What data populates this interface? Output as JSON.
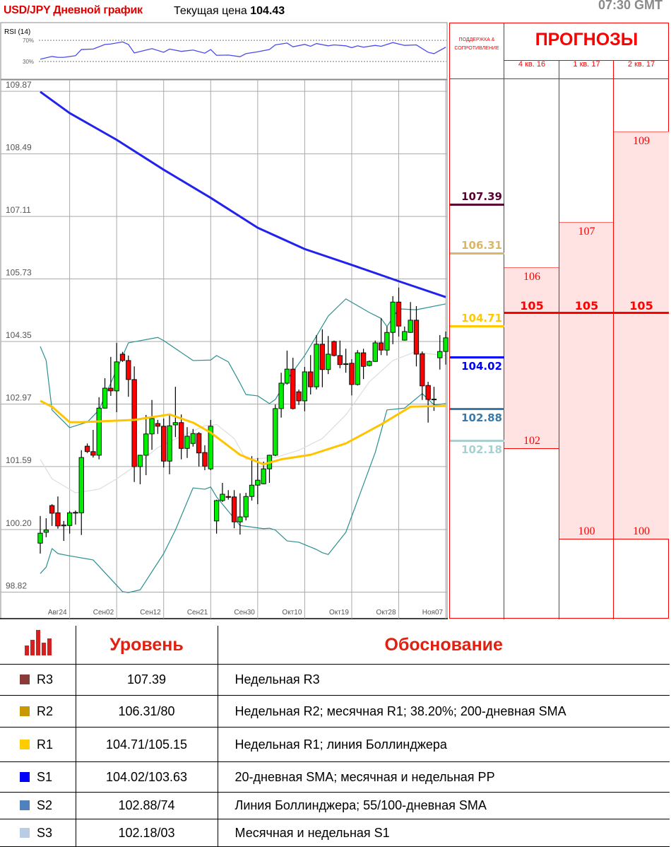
{
  "header": {
    "title": "USD/JPY Дневной график",
    "price_label": "Текущая цена",
    "price_value": "104.43",
    "time": "07:30 GMT"
  },
  "colors": {
    "up": "#00ee00",
    "down": "#ff0000",
    "sma200": "#2222ee",
    "sma55": "#ffc400",
    "bollinger": "#2a9090",
    "bollinger_mid": "#dddddd",
    "rsi": "#4a4af0",
    "accent": "#ff0000"
  },
  "chart_data": {
    "type": "candlestick",
    "ylim": [
      98.82,
      109.87
    ],
    "yticks": [
      "109.87",
      "108.49",
      "107.11",
      "105.73",
      "104.35",
      "102.97",
      "101.59",
      "100.20",
      "98.82"
    ],
    "xticks": [
      [
        "2016-08-24",
        "Авг24"
      ],
      [
        "2016-09-02",
        "Сен02"
      ],
      [
        "2016-09-12",
        "Сен12"
      ],
      [
        "2016-09-21",
        "Сен21"
      ],
      [
        "2016-09-30",
        "Сен30"
      ],
      [
        "2016-10-10",
        "Окт10"
      ],
      [
        "2016-10-19",
        "Окт19"
      ],
      [
        "2016-10-28",
        "Окт28"
      ],
      [
        "2016-11-07",
        "Ноя07"
      ]
    ],
    "grid": true,
    "candles_fields": [
      "date",
      "open",
      "high",
      "low",
      "close"
    ],
    "candles": [
      [
        "2016-08-18",
        99.9,
        100.5,
        99.67,
        100.12
      ],
      [
        "2016-08-19",
        100.14,
        100.45,
        100.03,
        100.19
      ],
      [
        "2016-08-21",
        100.73,
        100.76,
        100.28,
        100.56
      ],
      [
        "2016-08-22",
        100.57,
        100.93,
        100.22,
        100.28
      ],
      [
        "2016-08-23",
        100.29,
        100.39,
        99.95,
        100.3
      ],
      [
        "2016-08-24",
        100.29,
        100.61,
        100.11,
        100.57
      ],
      [
        "2016-08-25",
        100.57,
        100.62,
        100.31,
        100.58
      ],
      [
        "2016-08-26",
        100.57,
        101.95,
        100.08,
        101.79
      ],
      [
        "2016-08-28",
        102.04,
        102.1,
        101.89,
        101.92
      ],
      [
        "2016-08-29",
        101.92,
        102.4,
        101.79,
        101.84
      ],
      [
        "2016-08-30",
        101.84,
        103.12,
        101.75,
        102.88
      ],
      [
        "2016-08-31",
        102.88,
        103.54,
        102.87,
        103.32
      ],
      [
        "2016-09-01",
        103.32,
        104.01,
        103.15,
        103.26
      ],
      [
        "2016-09-02",
        103.26,
        104.32,
        102.79,
        103.9
      ],
      [
        "2016-09-04",
        104.07,
        104.12,
        103.9,
        103.93
      ],
      [
        "2016-09-05",
        103.93,
        104.04,
        103.13,
        103.51
      ],
      [
        "2016-09-06",
        103.51,
        103.8,
        101.25,
        101.59
      ],
      [
        "2016-09-07",
        101.59,
        101.85,
        101.2,
        101.84
      ],
      [
        "2016-09-08",
        101.84,
        102.73,
        101.4,
        102.31
      ],
      [
        "2016-09-09",
        102.31,
        103.06,
        101.96,
        102.65
      ],
      [
        "2016-09-11",
        102.54,
        102.62,
        102.31,
        102.48
      ],
      [
        "2016-09-12",
        102.48,
        102.65,
        101.57,
        101.71
      ],
      [
        "2016-09-13",
        101.71,
        102.73,
        101.42,
        102.49
      ],
      [
        "2016-09-14",
        102.51,
        103.35,
        102.24,
        102.56
      ],
      [
        "2016-09-15",
        102.56,
        102.74,
        101.75,
        101.99
      ],
      [
        "2016-09-16",
        101.99,
        102.46,
        101.78,
        102.26
      ],
      [
        "2016-09-18",
        102.1,
        102.42,
        102.03,
        102.32
      ],
      [
        "2016-09-19",
        102.32,
        102.35,
        101.59,
        101.89
      ],
      [
        "2016-09-20",
        101.9,
        102.06,
        101.51,
        101.6
      ],
      [
        "2016-09-21",
        101.54,
        102.62,
        101.51,
        102.48
      ],
      [
        "2016-09-22",
        100.39,
        100.86,
        100.11,
        100.84
      ],
      [
        "2016-09-23",
        100.84,
        101.23,
        100.81,
        100.98
      ],
      [
        "2016-09-25",
        100.93,
        101.07,
        100.86,
        100.92
      ],
      [
        "2016-09-26",
        100.92,
        101.07,
        100.23,
        100.37
      ],
      [
        "2016-09-27",
        100.37,
        101.0,
        100.09,
        100.48
      ],
      [
        "2016-09-28",
        100.48,
        101.01,
        100.4,
        100.93
      ],
      [
        "2016-09-29",
        100.93,
        101.82,
        100.84,
        101.18
      ],
      [
        "2016-09-30",
        101.18,
        101.78,
        100.76,
        101.29
      ],
      [
        "2016-10-02",
        101.21,
        101.7,
        101.2,
        101.54
      ],
      [
        "2016-10-03",
        101.54,
        101.85,
        101.23,
        101.84
      ],
      [
        "2016-10-04",
        101.84,
        102.96,
        101.82,
        102.87
      ],
      [
        "2016-10-05",
        102.87,
        103.66,
        102.67,
        103.43
      ],
      [
        "2016-10-06",
        103.43,
        104.15,
        103.4,
        103.74
      ],
      [
        "2016-10-07",
        103.74,
        103.99,
        102.85,
        102.87
      ],
      [
        "2016-10-09",
        103.24,
        103.29,
        102.95,
        103.04
      ],
      [
        "2016-10-10",
        103.04,
        103.79,
        102.81,
        103.68
      ],
      [
        "2016-10-11",
        103.68,
        104.05,
        103.18,
        103.35
      ],
      [
        "2016-10-12",
        103.35,
        104.49,
        103.29,
        104.29
      ],
      [
        "2016-10-13",
        104.29,
        104.62,
        103.34,
        103.73
      ],
      [
        "2016-10-14",
        103.73,
        104.47,
        103.63,
        104.07
      ],
      [
        "2016-10-16",
        104.35,
        104.37,
        104.02,
        104.04
      ],
      [
        "2016-10-17",
        104.04,
        104.37,
        103.76,
        103.84
      ],
      [
        "2016-10-18",
        103.85,
        104.19,
        103.66,
        103.86
      ],
      [
        "2016-10-19",
        103.87,
        103.96,
        103.16,
        103.4
      ],
      [
        "2016-10-20",
        103.4,
        104.16,
        103.38,
        104.1
      ],
      [
        "2016-10-21",
        104.1,
        104.19,
        103.52,
        103.8
      ],
      [
        "2016-10-23",
        103.82,
        103.93,
        103.8,
        103.91
      ],
      [
        "2016-10-24",
        103.91,
        104.37,
        103.9,
        104.32
      ],
      [
        "2016-10-25",
        104.32,
        104.86,
        104.05,
        104.16
      ],
      [
        "2016-10-26",
        104.16,
        104.68,
        104.04,
        104.55
      ],
      [
        "2016-10-27",
        104.55,
        105.35,
        104.29,
        105.22
      ],
      [
        "2016-10-28",
        105.22,
        105.54,
        104.46,
        104.69
      ],
      [
        "2016-10-30",
        104.38,
        104.68,
        104.37,
        104.57
      ],
      [
        "2016-10-31",
        104.55,
        105.22,
        104.54,
        104.82
      ],
      [
        "2016-11-01",
        104.82,
        105.13,
        103.8,
        104.07
      ],
      [
        "2016-11-02",
        104.08,
        104.13,
        103.06,
        103.37
      ],
      [
        "2016-11-03",
        103.38,
        103.46,
        102.56,
        103.07
      ],
      [
        "2016-11-04",
        103.07,
        103.35,
        102.82,
        103.08
      ],
      [
        "2016-11-06",
        103.99,
        104.49,
        103.73,
        104.13
      ],
      [
        "2016-11-07",
        104.13,
        104.57,
        103.84,
        104.43
      ]
    ],
    "sma200": [
      [
        "2016-08-18",
        109.86
      ],
      [
        "2016-08-24",
        109.39
      ],
      [
        "2016-09-02",
        108.8
      ],
      [
        "2016-09-12",
        108.14
      ],
      [
        "2016-09-21",
        107.52
      ],
      [
        "2016-09-30",
        106.86
      ],
      [
        "2016-10-10",
        106.39
      ],
      [
        "2016-10-19",
        106.04
      ],
      [
        "2016-10-28",
        105.68
      ],
      [
        "2016-11-07",
        105.33
      ]
    ],
    "sma55": [
      [
        "2016-08-18",
        103.04
      ],
      [
        "2016-08-21",
        102.91
      ],
      [
        "2016-08-24",
        102.57
      ],
      [
        "2016-08-26",
        102.57
      ],
      [
        "2016-09-06",
        102.62
      ],
      [
        "2016-09-13",
        102.74
      ],
      [
        "2016-09-18",
        102.56
      ],
      [
        "2016-09-21",
        102.34
      ],
      [
        "2016-09-27",
        101.85
      ],
      [
        "2016-10-02",
        101.64
      ],
      [
        "2016-10-05",
        101.75
      ],
      [
        "2016-10-11",
        101.85
      ],
      [
        "2016-10-18",
        102.1
      ],
      [
        "2016-10-25",
        102.52
      ],
      [
        "2016-10-31",
        102.91
      ],
      [
        "2016-11-07",
        102.93
      ]
    ],
    "bollinger_upper": [
      [
        "2016-08-18",
        104.24
      ],
      [
        "2016-08-19",
        103.93
      ],
      [
        "2016-08-21",
        102.84
      ],
      [
        "2016-08-24",
        102.45
      ],
      [
        "2016-08-28",
        102.57
      ],
      [
        "2016-08-30",
        102.84
      ],
      [
        "2016-09-05",
        104.32
      ],
      [
        "2016-09-11",
        104.44
      ],
      [
        "2016-09-12",
        104.37
      ],
      [
        "2016-09-18",
        103.93
      ],
      [
        "2016-09-21",
        103.94
      ],
      [
        "2016-09-22",
        104.04
      ],
      [
        "2016-09-25",
        103.9
      ],
      [
        "2016-09-27",
        103.43
      ],
      [
        "2016-09-28",
        103.18
      ],
      [
        "2016-09-30",
        103.15
      ],
      [
        "2016-10-03",
        102.98
      ],
      [
        "2016-10-04",
        103.07
      ],
      [
        "2016-10-06",
        103.51
      ],
      [
        "2016-10-10",
        104.04
      ],
      [
        "2016-10-12",
        104.47
      ],
      [
        "2016-10-14",
        104.91
      ],
      [
        "2016-10-18",
        105.29
      ],
      [
        "2016-10-23",
        104.99
      ],
      [
        "2016-10-25",
        104.86
      ],
      [
        "2016-10-26",
        104.68
      ],
      [
        "2016-10-28",
        105.07
      ],
      [
        "2016-11-01",
        105.05
      ],
      [
        "2016-11-07",
        105.18
      ]
    ],
    "bollinger_lower": [
      [
        "2016-08-18",
        99.23
      ],
      [
        "2016-08-19",
        99.37
      ],
      [
        "2016-08-21",
        99.78
      ],
      [
        "2016-08-22",
        99.67
      ],
      [
        "2016-08-24",
        99.62
      ],
      [
        "2016-08-29",
        99.53
      ],
      [
        "2016-08-31",
        99.25
      ],
      [
        "2016-09-04",
        98.83
      ],
      [
        "2016-09-05",
        98.81
      ],
      [
        "2016-09-07",
        98.87
      ],
      [
        "2016-09-12",
        99.67
      ],
      [
        "2016-09-14",
        100.19
      ],
      [
        "2016-09-18",
        101.12
      ],
      [
        "2016-09-20",
        101.09
      ],
      [
        "2016-09-21",
        101.14
      ],
      [
        "2016-09-22",
        100.92
      ],
      [
        "2016-09-27",
        100.29
      ],
      [
        "2016-10-02",
        100.22
      ],
      [
        "2016-10-03",
        100.23
      ],
      [
        "2016-10-04",
        100.19
      ],
      [
        "2016-10-06",
        99.95
      ],
      [
        "2016-10-09",
        99.92
      ],
      [
        "2016-10-12",
        99.76
      ],
      [
        "2016-10-13",
        99.69
      ],
      [
        "2016-10-14",
        99.65
      ],
      [
        "2016-10-18",
        100.14
      ],
      [
        "2016-10-24",
        101.9
      ],
      [
        "2016-10-26",
        102.84
      ],
      [
        "2016-10-30",
        102.88
      ],
      [
        "2016-11-02",
        103.2
      ],
      [
        "2016-11-04",
        102.95
      ],
      [
        "2016-11-07",
        102.98
      ]
    ],
    "bollinger_mid": [
      [
        "2016-08-18",
        101.75
      ],
      [
        "2016-08-21",
        101.32
      ],
      [
        "2016-08-25",
        101.01
      ],
      [
        "2016-08-30",
        101.09
      ],
      [
        "2016-09-02",
        101.32
      ],
      [
        "2016-09-06",
        101.59
      ],
      [
        "2016-09-11",
        102.01
      ],
      [
        "2016-09-15",
        102.26
      ],
      [
        "2016-09-20",
        102.49
      ],
      [
        "2016-09-22",
        102.52
      ],
      [
        "2016-09-26",
        102.21
      ],
      [
        "2016-09-28",
        101.75
      ],
      [
        "2016-10-04",
        101.79
      ],
      [
        "2016-10-09",
        101.95
      ],
      [
        "2016-10-13",
        102.21
      ],
      [
        "2016-10-18",
        102.73
      ],
      [
        "2016-10-23",
        103.46
      ],
      [
        "2016-10-27",
        103.93
      ],
      [
        "2016-11-01",
        104.13
      ],
      [
        "2016-11-03",
        104.08
      ],
      [
        "2016-11-07",
        104.04
      ]
    ],
    "rsi": {
      "label": "RSI (14)",
      "levels": [
        "70%",
        "30%"
      ],
      "level_values": [
        70,
        30
      ],
      "values": [
        [
          "2016-08-18",
          34.3
        ],
        [
          "2016-08-21",
          39.6
        ],
        [
          "2016-08-22",
          37.8
        ],
        [
          "2016-08-23",
          37.8
        ],
        [
          "2016-08-25",
          40.9
        ],
        [
          "2016-08-26",
          52.6
        ],
        [
          "2016-08-29",
          53.5
        ],
        [
          "2016-08-31",
          62.2
        ],
        [
          "2016-09-01",
          63.0
        ],
        [
          "2016-09-04",
          67.0
        ],
        [
          "2016-09-05",
          62.2
        ],
        [
          "2016-09-06",
          46.1
        ],
        [
          "2016-09-09",
          54.3
        ],
        [
          "2016-09-12",
          47.4
        ],
        [
          "2016-09-13",
          53.5
        ],
        [
          "2016-09-15",
          49.1
        ],
        [
          "2016-09-18",
          51.7
        ],
        [
          "2016-09-20",
          45.7
        ],
        [
          "2016-09-21",
          52.6
        ],
        [
          "2016-09-22",
          41.7
        ],
        [
          "2016-09-25",
          42.2
        ],
        [
          "2016-09-27",
          39.1
        ],
        [
          "2016-09-28",
          44.8
        ],
        [
          "2016-09-30",
          48.3
        ],
        [
          "2016-10-03",
          52.6
        ],
        [
          "2016-10-04",
          61.3
        ],
        [
          "2016-10-06",
          64.8
        ],
        [
          "2016-10-07",
          57.8
        ],
        [
          "2016-10-10",
          62.2
        ],
        [
          "2016-10-11",
          58.7
        ],
        [
          "2016-10-12",
          63.9
        ],
        [
          "2016-10-14",
          59.6
        ],
        [
          "2016-10-16",
          61.3
        ],
        [
          "2016-10-18",
          59.6
        ],
        [
          "2016-10-19",
          56.1
        ],
        [
          "2016-10-20",
          59.6
        ],
        [
          "2016-10-21",
          57.0
        ],
        [
          "2016-10-24",
          60.4
        ],
        [
          "2016-10-25",
          58.7
        ],
        [
          "2016-10-27",
          65.7
        ],
        [
          "2016-10-30",
          60.4
        ],
        [
          "2016-11-01",
          61.3
        ],
        [
          "2016-11-03",
          47.4
        ],
        [
          "2016-11-04",
          44.8
        ],
        [
          "2016-11-07",
          57.0
        ]
      ]
    }
  },
  "right_panel": {
    "sr_header": "ПОДДЕРЖКА & СОПРОТИВЛЕНИЕ",
    "forecast_header": "ПРОГНОЗЫ",
    "levels": [
      {
        "value": 107.39,
        "label": "107.39",
        "color": "#5a0030",
        "side": "above"
      },
      {
        "value": 106.31,
        "label": "106.31",
        "color": "#d8b868",
        "side": "above"
      },
      {
        "value": 104.71,
        "label": "104.71",
        "color": "#ffc800",
        "side": "above"
      },
      {
        "value": 104.02,
        "label": "104.02",
        "color": "#0000ff",
        "side": "below"
      },
      {
        "value": 102.88,
        "label": "102.88",
        "color": "#3a7aa8",
        "side": "below"
      },
      {
        "value": 102.18,
        "label": "102.18",
        "color": "#a8d0d0",
        "side": "below"
      }
    ],
    "forecasts": [
      {
        "quarter": "4 кв. 16",
        "high": 106,
        "high_label": "106",
        "low": 102,
        "low_label": "102",
        "median": "105"
      },
      {
        "quarter": "1 кв. 17",
        "high": 107,
        "high_label": "107",
        "low": 100,
        "low_label": "100",
        "median": "105"
      },
      {
        "quarter": "2 кв. 17",
        "high": 109,
        "high_label": "109",
        "low": 100,
        "low_label": "100",
        "median": "105"
      }
    ],
    "median_value": 105
  },
  "table": {
    "headers": {
      "level": "Уровень",
      "reason": "Обоснование"
    },
    "rows": [
      {
        "name": "R3",
        "color": "#8b3a3a",
        "level": "107.39",
        "reason": "Недельная R3"
      },
      {
        "name": "R2",
        "color": "#c89800",
        "level": "106.31/80",
        "reason": "Недельная R2; месячная R1; 38.20%; 200-дневная SMA"
      },
      {
        "name": "R1",
        "color": "#ffcc00",
        "level": "104.71/105.15",
        "reason": "Недельная R1; линия Боллинджера"
      },
      {
        "name": "S1",
        "color": "#0000ff",
        "level": "104.02/103.63",
        "reason": "20-дневная SMA; месячная и недельная PP"
      },
      {
        "name": "S2",
        "color": "#4f81bd",
        "level": "102.88/74",
        "reason": "Линия Боллинджера; 55/100-дневная SMA"
      },
      {
        "name": "S3",
        "color": "#b8cce4",
        "level": "102.18/03",
        "reason": "Месячная и недельная S1"
      }
    ]
  }
}
